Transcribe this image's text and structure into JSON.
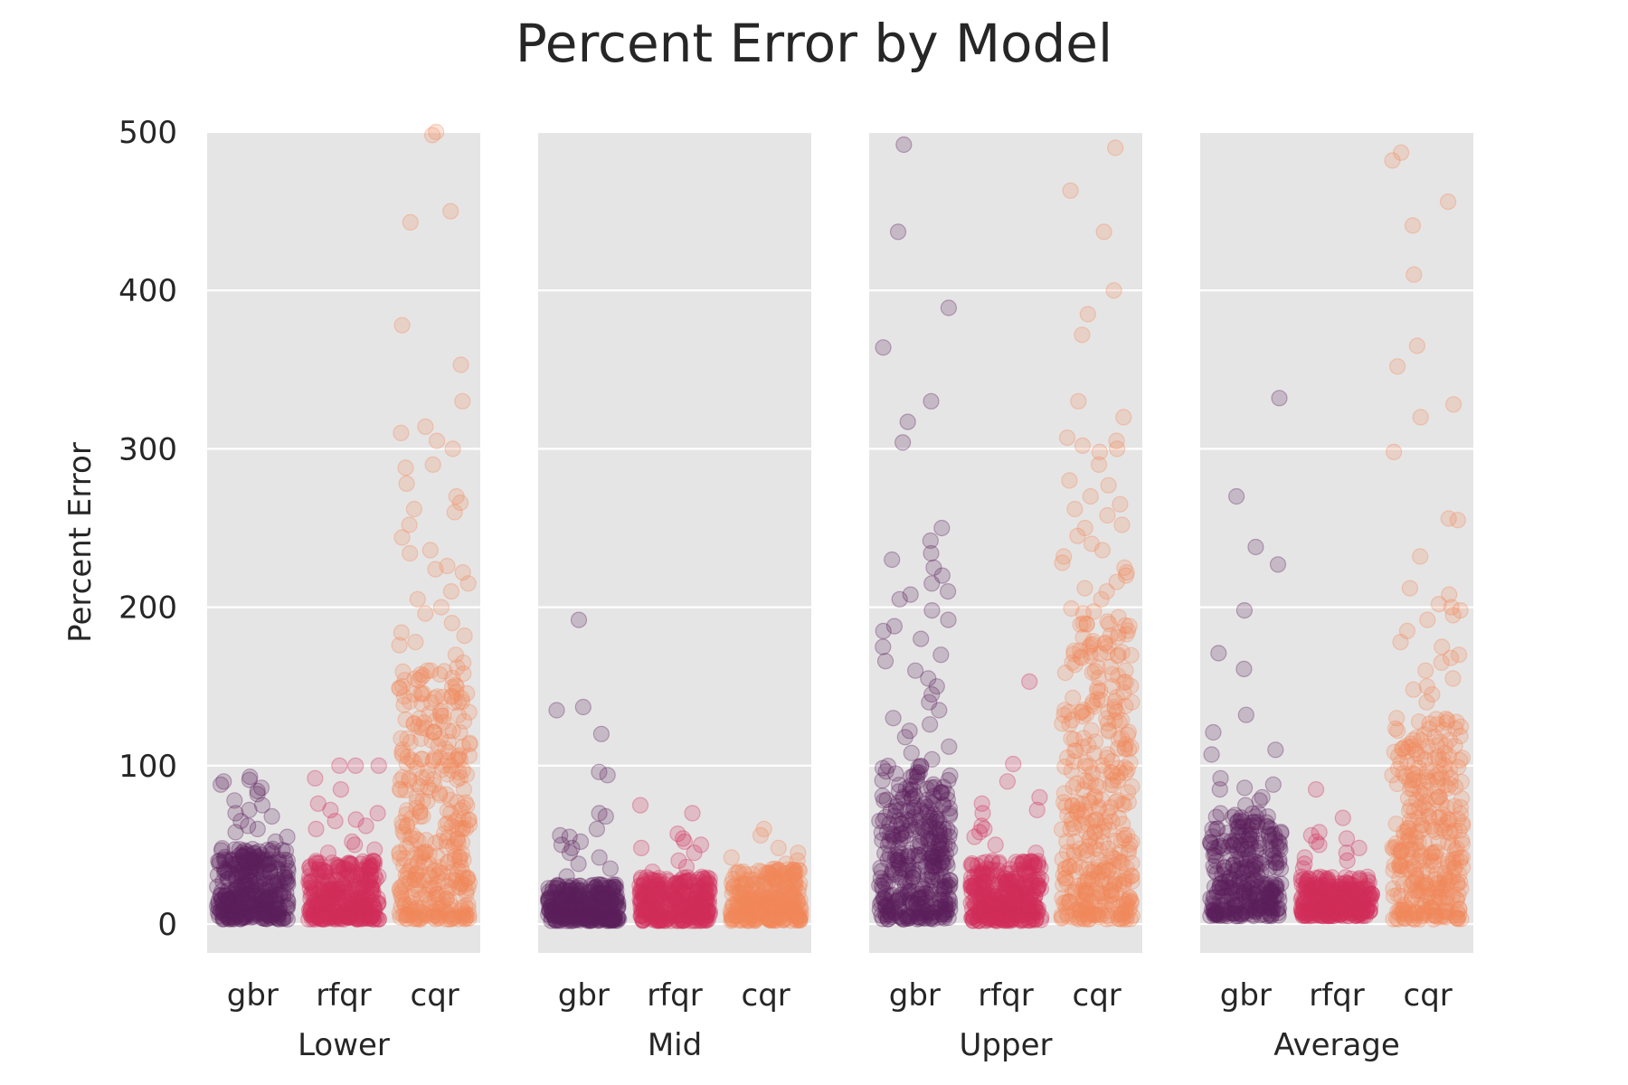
{
  "chart_data": {
    "type": "scatter",
    "subtype": "strip-plot (jittered), faceted",
    "title": "Percent Error by Model",
    "ylabel": "Percent Error",
    "ylim": [
      -18,
      500
    ],
    "yticks": [
      0,
      100,
      200,
      300,
      400,
      500
    ],
    "categories": [
      "gbr",
      "rfqr",
      "cqr"
    ],
    "colors": {
      "gbr": "#5c1f5d",
      "rfqr": "#d22f59",
      "cqr": "#f3885a"
    },
    "background": "#e5e5e5",
    "grid": true,
    "panels": [
      {
        "label": "Lower",
        "series": [
          {
            "category": "gbr",
            "n": 340,
            "bulk": [
              3,
              48
            ],
            "tail_max": 95,
            "outliers": [
              93,
              91,
              90,
              88,
              86,
              84,
              82,
              78,
              75,
              72,
              70,
              68,
              65,
              62,
              60,
              58,
              55,
              52
            ]
          },
          {
            "category": "rfqr",
            "n": 330,
            "bulk": [
              3,
              40
            ],
            "tail_max": 100,
            "outliers": [
              100,
              100,
              100,
              92,
              85,
              76,
              72,
              70,
              66,
              65,
              62,
              60,
              52,
              50,
              47,
              45
            ]
          },
          {
            "category": "cqr",
            "n": 360,
            "bulk": [
              3,
              160
            ],
            "tail_max": 500,
            "outliers": [
              500,
              498,
              450,
              443,
              378,
              353,
              330,
              314,
              310,
              305,
              300,
              290,
              288,
              278,
              270,
              266,
              262,
              260,
              252,
              244,
              236,
              234,
              226,
              224,
              222,
              215,
              210,
              205,
              200,
              196,
              190,
              184,
              182,
              178,
              176,
              170,
              165,
              162
            ]
          }
        ]
      },
      {
        "label": "Mid",
        "series": [
          {
            "category": "gbr",
            "n": 320,
            "bulk": [
              2,
              25
            ],
            "tail_max": 192,
            "outliers": [
              192,
              137,
              135,
              120,
              96,
              94,
              70,
              68,
              60,
              56,
              55,
              52,
              50,
              48,
              45,
              42,
              38,
              35,
              30
            ]
          },
          {
            "category": "rfqr",
            "n": 310,
            "bulk": [
              2,
              30
            ],
            "tail_max": 75,
            "outliers": [
              75,
              70,
              57,
              54,
              52,
              50,
              48,
              45,
              40,
              36,
              33
            ]
          },
          {
            "category": "cqr",
            "n": 300,
            "bulk": [
              2,
              35
            ],
            "tail_max": 60,
            "outliers": [
              60,
              56,
              48,
              45,
              42,
              40,
              38
            ]
          }
        ]
      },
      {
        "label": "Upper",
        "series": [
          {
            "category": "gbr",
            "n": 360,
            "bulk": [
              3,
              100
            ],
            "tail_max": 492,
            "outliers": [
              492,
              437,
              389,
              364,
              330,
              317,
              304,
              250,
              242,
              234,
              230,
              225,
              220,
              215,
              210,
              208,
              205,
              198,
              192,
              188,
              185,
              180,
              175,
              170,
              166,
              160,
              155,
              150,
              145,
              140,
              135,
              130,
              126,
              122,
              118,
              112,
              108,
              104
            ]
          },
          {
            "category": "rfqr",
            "n": 330,
            "bulk": [
              2,
              40
            ],
            "tail_max": 153,
            "outliers": [
              153,
              101,
              90,
              80,
              76,
              72,
              70,
              62,
              60,
              58,
              55,
              50,
              45
            ]
          },
          {
            "category": "cqr",
            "n": 380,
            "bulk": [
              3,
              200
            ],
            "tail_max": 490,
            "outliers": [
              490,
              463,
              437,
              400,
              385,
              372,
              330,
              320,
              307,
              305,
              302,
              300,
              298,
              290,
              280,
              277,
              270,
              265,
              262,
              258,
              252,
              250,
              245,
              240,
              236,
              232,
              228,
              225,
              222,
              220,
              216,
              212,
              210,
              205
            ]
          }
        ]
      },
      {
        "label": "Average",
        "series": [
          {
            "category": "gbr",
            "n": 300,
            "bulk": [
              5,
              70
            ],
            "tail_max": 332,
            "outliers": [
              332,
              270,
              238,
              227,
              198,
              171,
              161,
              132,
              121,
              110,
              107,
              92,
              88,
              86,
              85,
              80,
              78,
              75
            ]
          },
          {
            "category": "rfqr",
            "n": 300,
            "bulk": [
              5,
              30
            ],
            "tail_max": 85,
            "outliers": [
              85,
              67,
              58,
              56,
              54,
              52,
              50,
              48,
              45,
              42,
              40,
              38,
              35
            ]
          },
          {
            "category": "cqr",
            "n": 340,
            "bulk": [
              3,
              130
            ],
            "tail_max": 487,
            "outliers": [
              487,
              482,
              456,
              441,
              410,
              365,
              352,
              328,
              320,
              298,
              256,
              255,
              232,
              212,
              208,
              202,
              200,
              198,
              195,
              192,
              185,
              178,
              175,
              170,
              168,
              165,
              160,
              155,
              150,
              148,
              145,
              140
            ]
          }
        ]
      }
    ]
  }
}
